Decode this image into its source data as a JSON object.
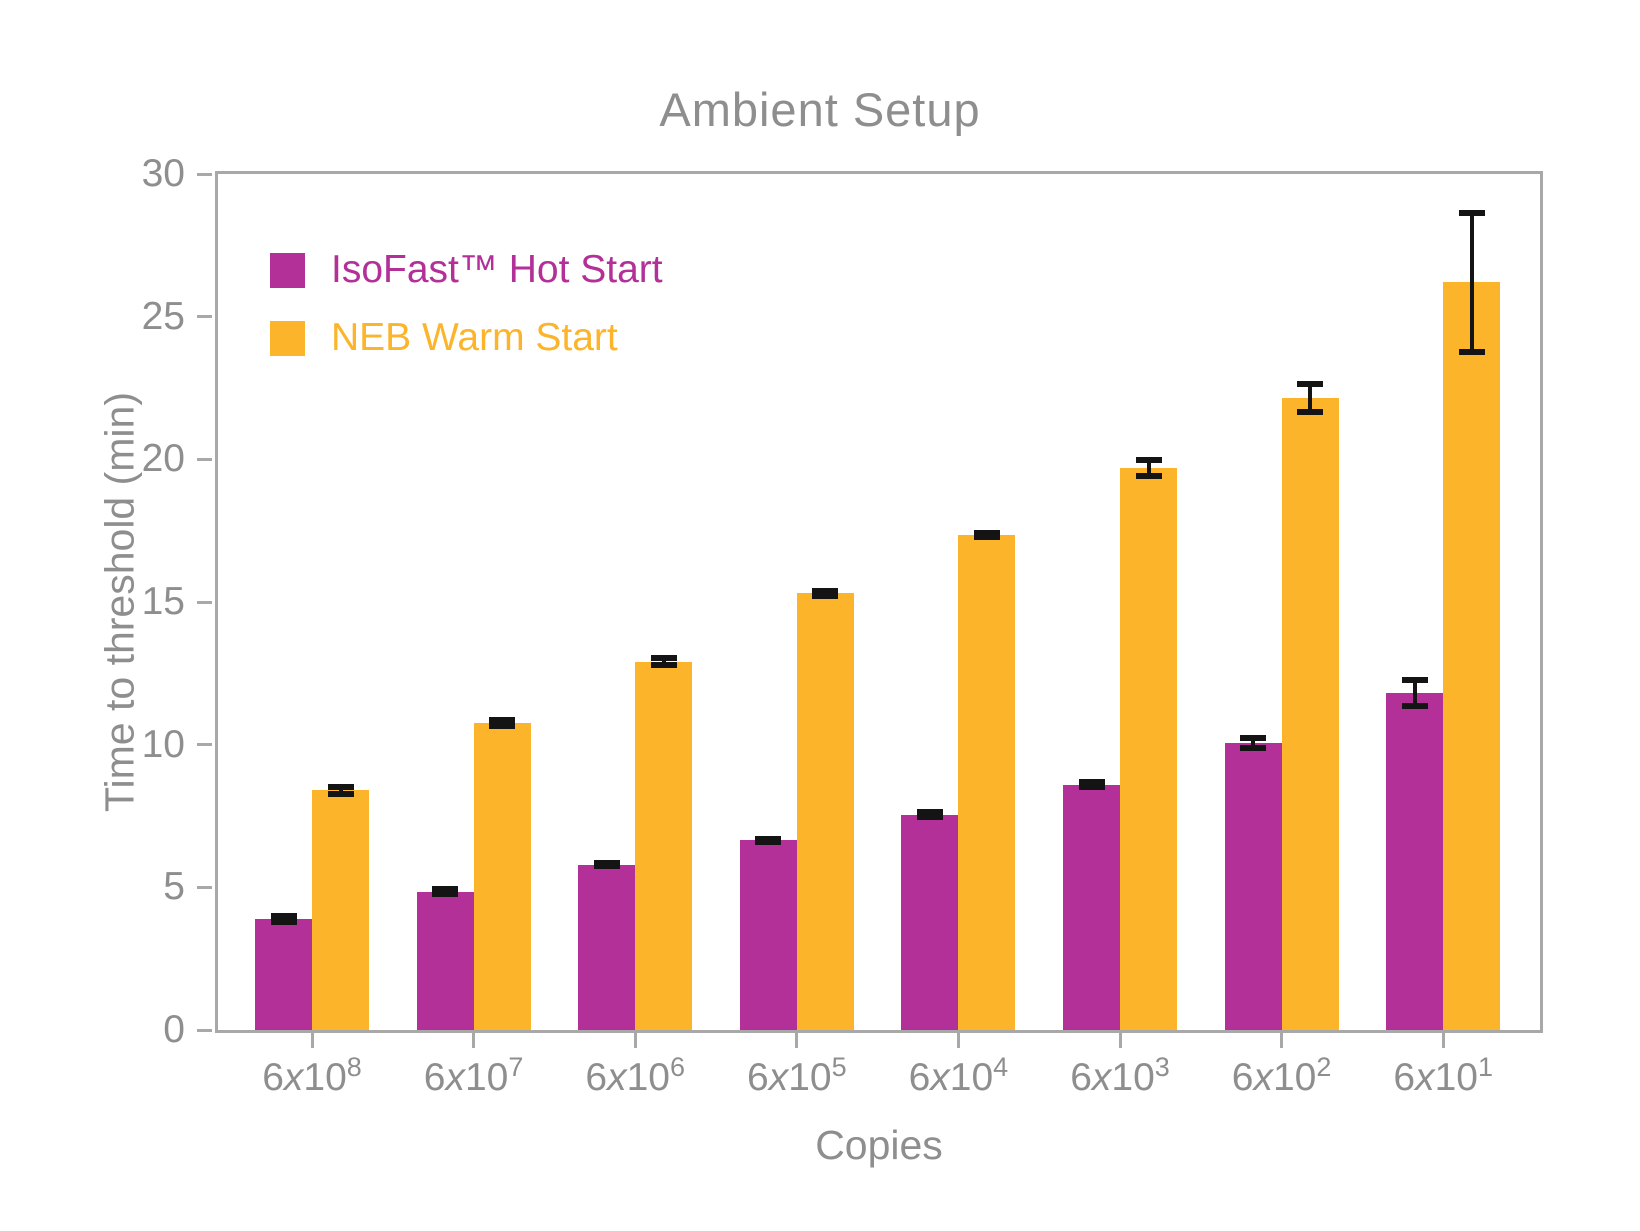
{
  "chart_data": {
    "type": "bar",
    "title": "Ambient Setup",
    "xlabel": "Copies",
    "ylabel": "Time to threshold (min)",
    "ylim": [
      0,
      30
    ],
    "yticks": [
      0,
      5,
      10,
      15,
      20,
      25,
      30
    ],
    "grid": false,
    "legend_position": "upper-left-inside",
    "categories": [
      "6x10^8",
      "6x10^7",
      "6x10^6",
      "6x10^5",
      "6x10^4",
      "6x10^3",
      "6x10^2",
      "6x10^1"
    ],
    "series": [
      {
        "name": "IsoFast™ Hot Start",
        "color": "#b23098",
        "values": [
          3.9,
          4.85,
          5.8,
          6.65,
          7.55,
          8.6,
          10.05,
          11.8
        ],
        "errors": [
          0.1,
          0.08,
          0.06,
          0.06,
          0.1,
          0.08,
          0.18,
          0.45
        ]
      },
      {
        "name": "NEB Warm Start",
        "color": "#fcb42a",
        "values": [
          8.4,
          10.75,
          12.9,
          15.3,
          17.35,
          19.7,
          22.15,
          26.2
        ],
        "errors": [
          0.12,
          0.1,
          0.12,
          0.1,
          0.08,
          0.28,
          0.5,
          2.45
        ]
      }
    ],
    "error_bar_color": "#141414",
    "axis_color": "#a8a8a8",
    "text_color": "#8e8e8e"
  }
}
